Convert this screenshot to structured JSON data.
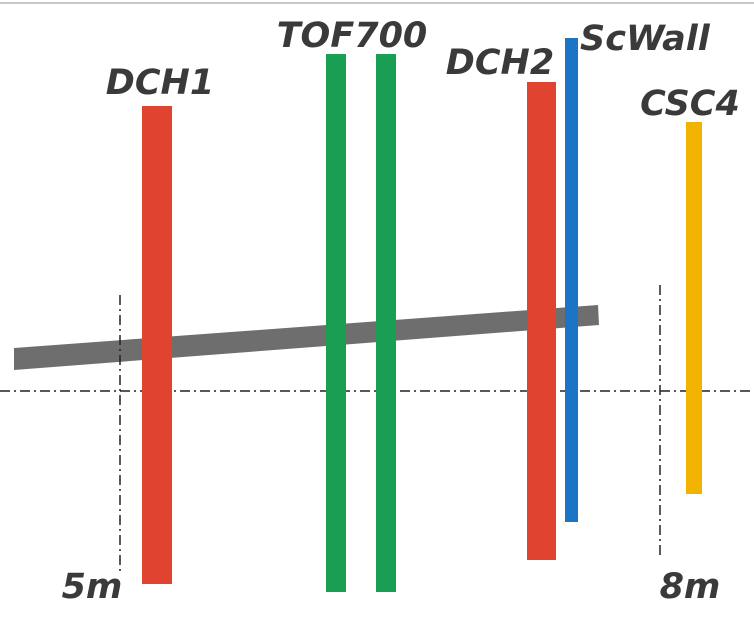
{
  "detectors": [
    {
      "label": "DCH1"
    },
    {
      "label": "TOF700"
    },
    {
      "label": "DCH2"
    },
    {
      "label": "ScWall"
    },
    {
      "label": "CSC4"
    }
  ],
  "markers": [
    {
      "label": "5m"
    },
    {
      "label": "8m"
    }
  ]
}
